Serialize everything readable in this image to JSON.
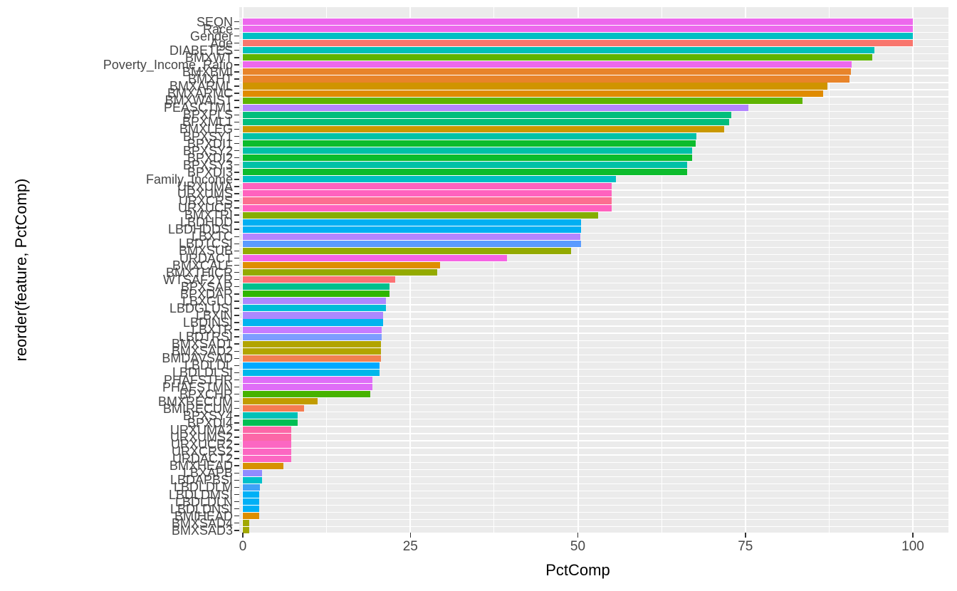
{
  "chart_data": {
    "type": "bar",
    "orientation": "horizontal",
    "title": "",
    "xlabel": "PctComp",
    "ylabel": "reorder(feature, PctComp)",
    "xlim": [
      0,
      100
    ],
    "x_major_ticks": [
      0,
      25,
      50,
      75,
      100
    ],
    "x_tick_labels": [
      "0",
      "25",
      "50",
      "75",
      "100"
    ],
    "x_minor_gridlines": [
      12.5,
      37.5,
      62.5,
      87.5
    ],
    "grid": "on",
    "legend": "none",
    "panel_bg": "#EBEBEB",
    "grid_color": "#FFFFFF",
    "axis_text_color": "#474747",
    "categories_note": "features ordered by descending PctComp (reorder(feature, PctComp))",
    "features": [
      {
        "name": "SEQN",
        "value": 100,
        "color": "#ED68ED"
      },
      {
        "name": "Race",
        "value": 100,
        "color": "#ED68ED"
      },
      {
        "name": "Gender",
        "value": 100,
        "color": "#00BFC4"
      },
      {
        "name": "Age",
        "value": 100,
        "color": "#F8766D"
      },
      {
        "name": "DIABETES",
        "value": 94.3,
        "color": "#00C0B8"
      },
      {
        "name": "BMXWT",
        "value": 93.9,
        "color": "#5EB300"
      },
      {
        "name": "Poverty_Income_Ratio",
        "value": 90.9,
        "color": "#ED68ED"
      },
      {
        "name": "BMXBMI",
        "value": 90.7,
        "color": "#E8842A"
      },
      {
        "name": "BMXHT",
        "value": 90.5,
        "color": "#E8842A"
      },
      {
        "name": "BMXARML",
        "value": 87.2,
        "color": "#D09400"
      },
      {
        "name": "BMXARMC",
        "value": 86.6,
        "color": "#E08B00"
      },
      {
        "name": "BMXWAIST",
        "value": 83.5,
        "color": "#5EB300"
      },
      {
        "name": "PEASCTM1",
        "value": 75.4,
        "color": "#B385FF"
      },
      {
        "name": "BPXPLS",
        "value": 72.9,
        "color": "#00BE7C"
      },
      {
        "name": "BPXML1",
        "value": 72.6,
        "color": "#00BE7C"
      },
      {
        "name": "BMXLEG",
        "value": 71.8,
        "color": "#C99800"
      },
      {
        "name": "BPXSY1",
        "value": 67.7,
        "color": "#00C1A7"
      },
      {
        "name": "BPXDI1",
        "value": 67.6,
        "color": "#0CBC2D"
      },
      {
        "name": "BPXSY2",
        "value": 67.0,
        "color": "#00C1A7"
      },
      {
        "name": "BPXDI2",
        "value": 67.0,
        "color": "#0CBC2D"
      },
      {
        "name": "BPXSY3",
        "value": 66.3,
        "color": "#00C1A7"
      },
      {
        "name": "BPXDI3",
        "value": 66.3,
        "color": "#0CBC2D"
      },
      {
        "name": "Family_Income",
        "value": 55.7,
        "color": "#00BFC4"
      },
      {
        "name": "URXUMA",
        "value": 55.0,
        "color": "#FF62BE"
      },
      {
        "name": "URXUMS",
        "value": 55.0,
        "color": "#FF62BE"
      },
      {
        "name": "URXCRS",
        "value": 55.0,
        "color": "#FC6E90"
      },
      {
        "name": "URXUCR",
        "value": 55.0,
        "color": "#FF62BE"
      },
      {
        "name": "BMXTRI",
        "value": 53.0,
        "color": "#85AD00"
      },
      {
        "name": "LBDHDD",
        "value": 50.5,
        "color": "#00AFF2"
      },
      {
        "name": "LBDHDDSI",
        "value": 50.5,
        "color": "#00AFF2"
      },
      {
        "name": "LBXTC",
        "value": 50.4,
        "color": "#B385FF"
      },
      {
        "name": "LBDTCSI",
        "value": 50.5,
        "color": "#5A9BFF"
      },
      {
        "name": "BMXSUB",
        "value": 49.0,
        "color": "#93AA00"
      },
      {
        "name": "URDACT",
        "value": 39.4,
        "color": "#F564E3"
      },
      {
        "name": "BMXCALF",
        "value": 29.4,
        "color": "#DF8E00"
      },
      {
        "name": "BMXTHICR",
        "value": 29.0,
        "color": "#93AA00"
      },
      {
        "name": "WTSAF2YR",
        "value": 22.7,
        "color": "#FC7173"
      },
      {
        "name": "BPXSAR",
        "value": 21.9,
        "color": "#00C08D"
      },
      {
        "name": "BPXDAR",
        "value": 21.9,
        "color": "#2FB600"
      },
      {
        "name": "LBXGLU",
        "value": 21.4,
        "color": "#AC88FF"
      },
      {
        "name": "LBDGLUSI",
        "value": 21.4,
        "color": "#00BCD8"
      },
      {
        "name": "LBXIN",
        "value": 20.9,
        "color": "#AC88FF"
      },
      {
        "name": "LBDINSI",
        "value": 20.9,
        "color": "#00B4EF"
      },
      {
        "name": "LBXTR",
        "value": 20.7,
        "color": "#C77CFF"
      },
      {
        "name": "LBDTRSI",
        "value": 20.7,
        "color": "#7E9DFF"
      },
      {
        "name": "BMXSAD1",
        "value": 20.6,
        "color": "#B2A400"
      },
      {
        "name": "BMXSAD2",
        "value": 20.6,
        "color": "#B2A400"
      },
      {
        "name": "BMDAVSAD",
        "value": 20.6,
        "color": "#F2804F"
      },
      {
        "name": "LBDLDL",
        "value": 20.4,
        "color": "#00A9FF"
      },
      {
        "name": "LBDLDLSI",
        "value": 20.4,
        "color": "#00B7EA"
      },
      {
        "name": "PHAFSTHR",
        "value": 19.3,
        "color": "#DF6DF7"
      },
      {
        "name": "PHAFSTMN",
        "value": 19.3,
        "color": "#DF6DF7"
      },
      {
        "name": "BPXCHR",
        "value": 19.0,
        "color": "#47B200"
      },
      {
        "name": "BMXRECUM",
        "value": 11.2,
        "color": "#C19C00"
      },
      {
        "name": "BMIRECUM",
        "value": 9.1,
        "color": "#F57C51"
      },
      {
        "name": "BPXSY4",
        "value": 8.2,
        "color": "#00C1B7"
      },
      {
        "name": "BPXDI4",
        "value": 8.2,
        "color": "#00BF53"
      },
      {
        "name": "URXUMA2",
        "value": 7.2,
        "color": "#FC67A7"
      },
      {
        "name": "URXUMS2",
        "value": 7.2,
        "color": "#FC67A7"
      },
      {
        "name": "URXUCR2",
        "value": 7.2,
        "color": "#FC67C2"
      },
      {
        "name": "URXCRS2",
        "value": 7.2,
        "color": "#FC67C2"
      },
      {
        "name": "URDACT2",
        "value": 7.2,
        "color": "#FC67C2"
      },
      {
        "name": "BMXHEAD",
        "value": 6.0,
        "color": "#D69200"
      },
      {
        "name": "LBXAPB",
        "value": 2.9,
        "color": "#918BFF"
      },
      {
        "name": "LBDAPBSI",
        "value": 2.9,
        "color": "#00C0CB"
      },
      {
        "name": "LBDLDLM",
        "value": 2.5,
        "color": "#3FA2F7"
      },
      {
        "name": "LBDLDMSI",
        "value": 2.4,
        "color": "#00B0F6"
      },
      {
        "name": "LBDLDLN",
        "value": 2.4,
        "color": "#00B0F6"
      },
      {
        "name": "LBDLDNSI",
        "value": 2.4,
        "color": "#00B0F6"
      },
      {
        "name": "BMIHEAD",
        "value": 2.4,
        "color": "#DC8E00"
      },
      {
        "name": "BMXSAD4",
        "value": 1.0,
        "color": "#A2A800"
      },
      {
        "name": "BMXSAD3",
        "value": 1.0,
        "color": "#A2A800"
      }
    ]
  }
}
